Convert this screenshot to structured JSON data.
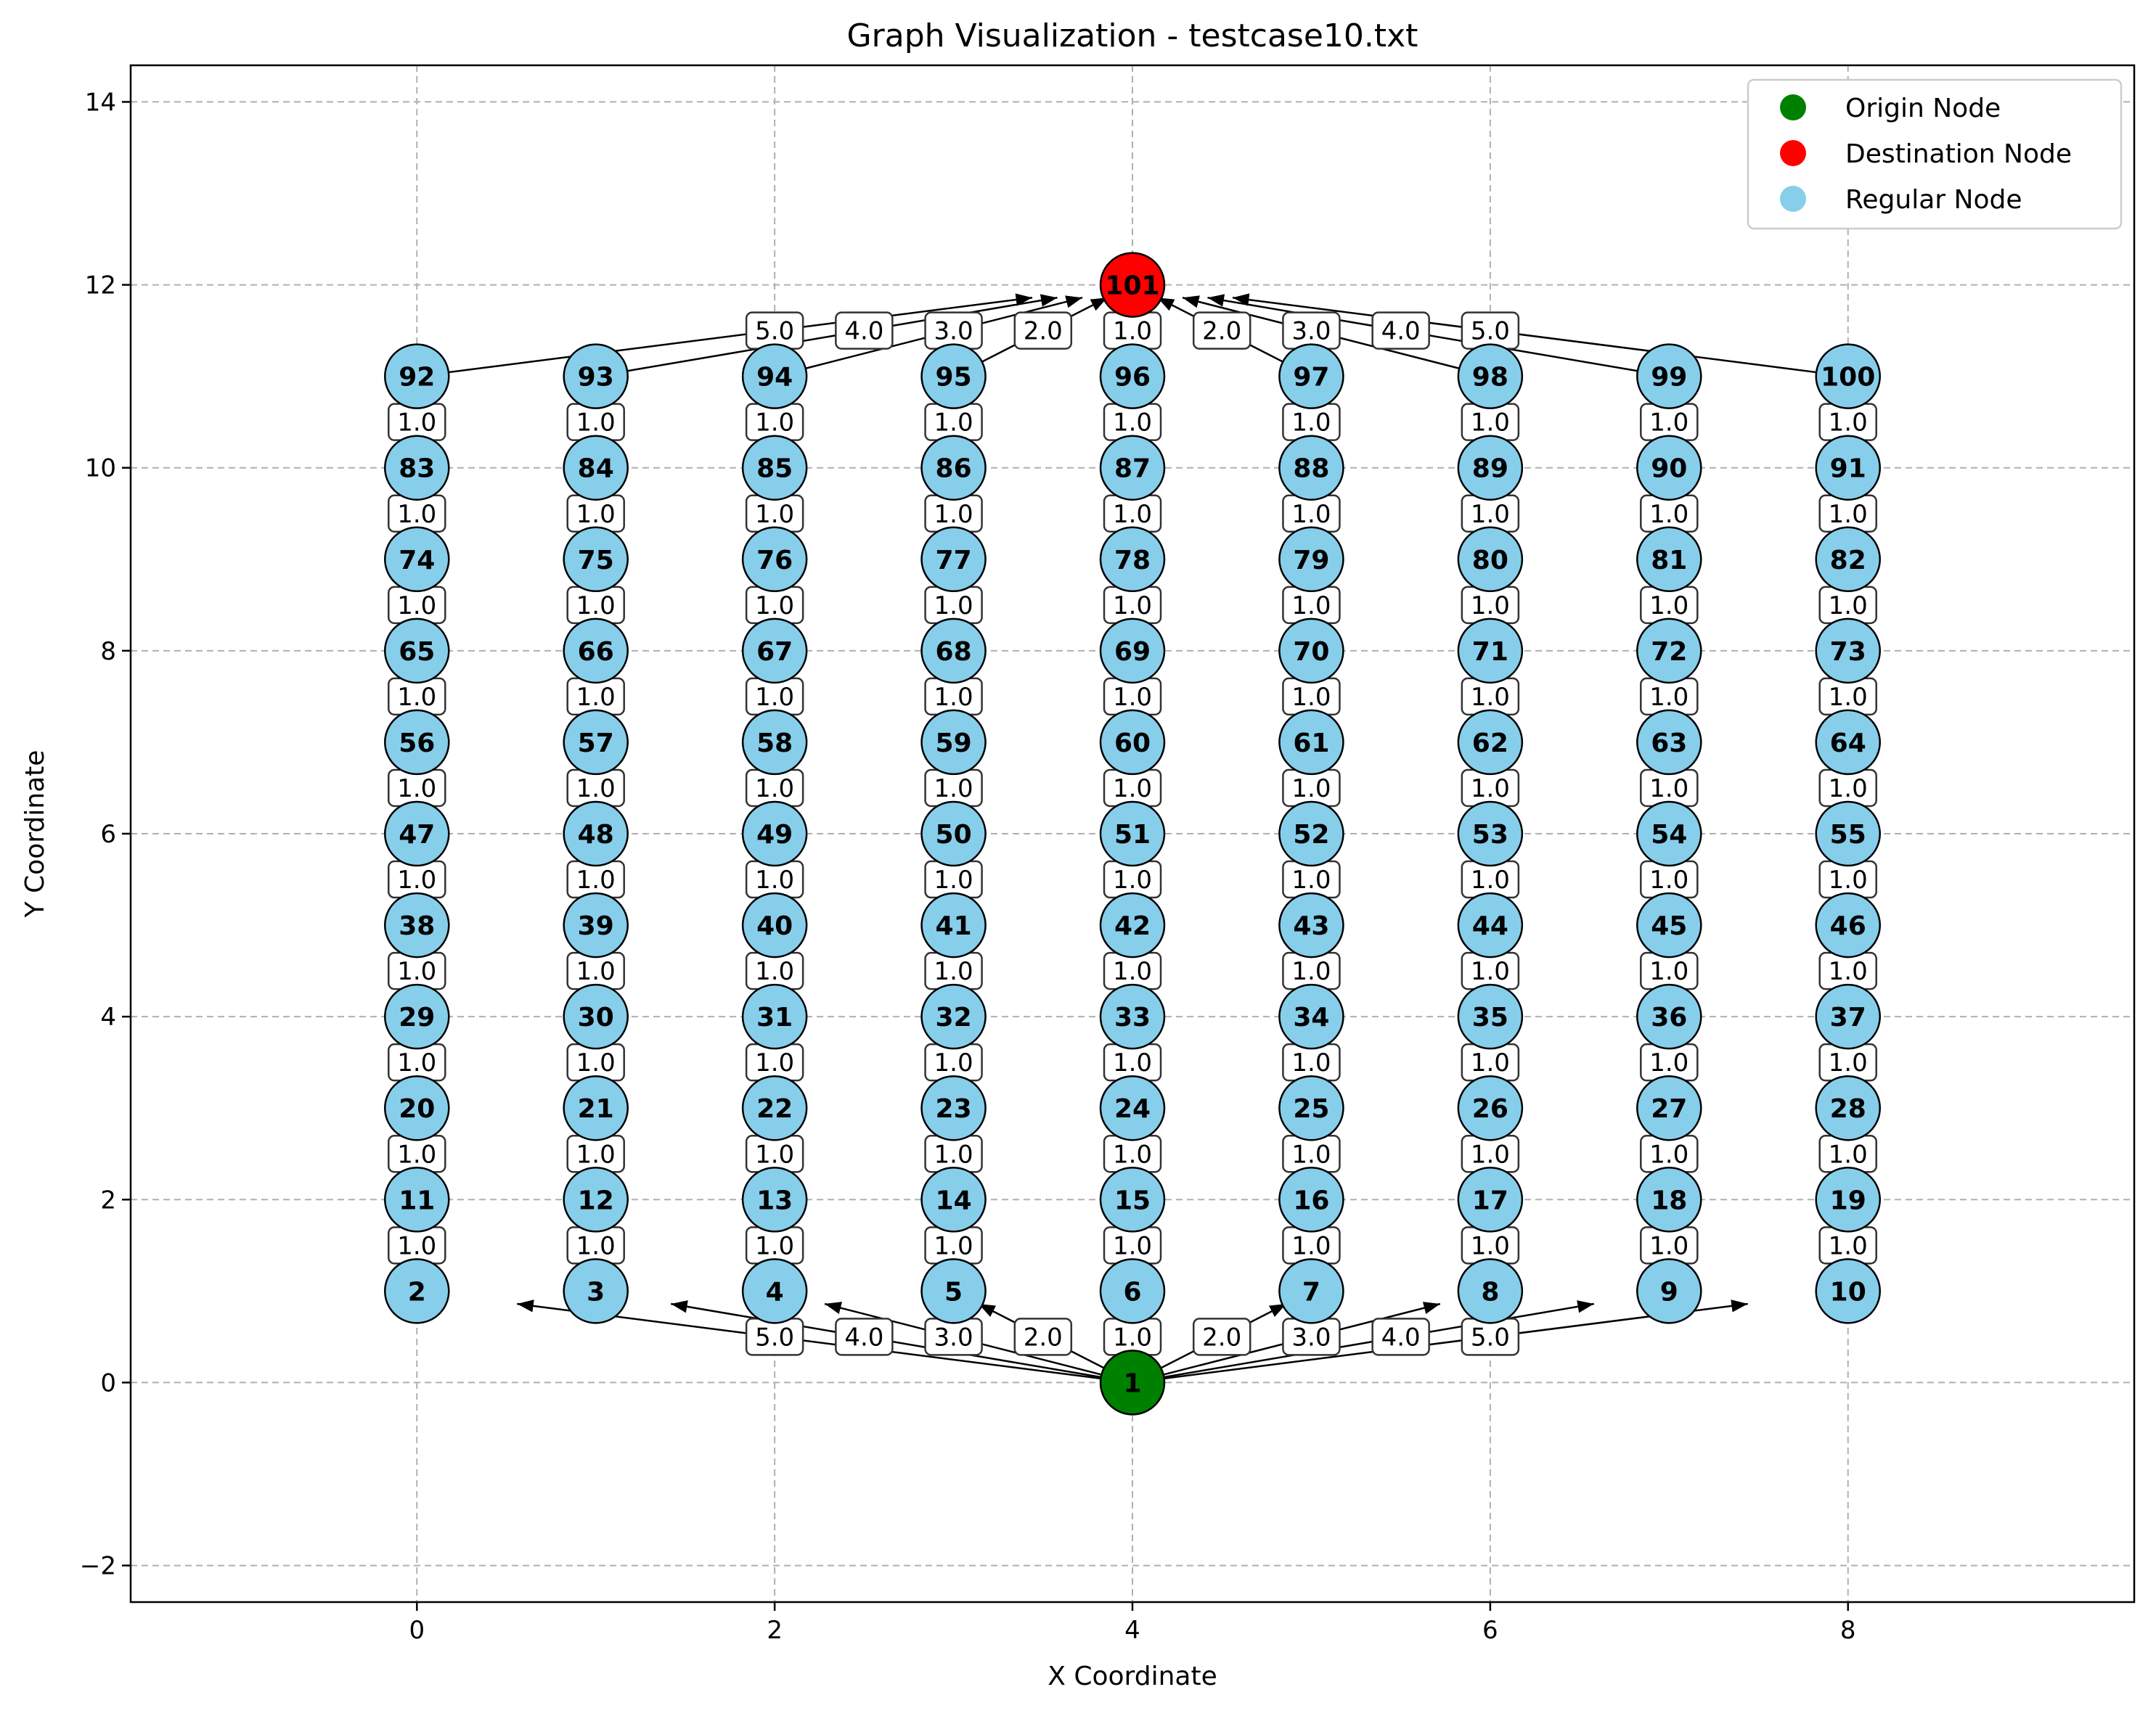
{
  "chart_data": {
    "type": "scatter",
    "title": "Graph Visualization - testcase10.txt",
    "xlabel": "X Coordinate",
    "ylabel": "Y Coordinate",
    "xlim": [
      -1.6,
      9.6
    ],
    "ylim": [
      -2.4,
      14.4
    ],
    "xticks": [
      0,
      2,
      4,
      6,
      8
    ],
    "yticks": [
      -2,
      0,
      2,
      4,
      6,
      8,
      10,
      12,
      14
    ],
    "grid": true,
    "legend_placement": "top-right",
    "legend": [
      {
        "name": "Origin Node",
        "color": "#008000"
      },
      {
        "name": "Destination Node",
        "color": "#ff0000"
      },
      {
        "name": "Regular Node",
        "color": "#87ceeb"
      }
    ],
    "colors": {
      "origin": "#008000",
      "destination": "#ff0000",
      "regular": "#87ceeb"
    },
    "origin": {
      "id": 1,
      "x": 4,
      "y": 0
    },
    "destination": {
      "id": 101,
      "x": 4,
      "y": 12
    },
    "grid_nodes": {
      "first_id": 2,
      "columns_x": [
        0,
        1,
        2,
        3,
        4,
        5,
        6,
        7,
        8
      ],
      "rows_y": [
        1,
        2,
        3,
        4,
        5,
        6,
        7,
        8,
        9,
        10,
        11
      ]
    },
    "vertical_edge_weight": "1.0",
    "origin_edges": [
      {
        "to": 2,
        "weight": "5.0"
      },
      {
        "to": 3,
        "weight": "4.0"
      },
      {
        "to": 4,
        "weight": "3.0"
      },
      {
        "to": 5,
        "weight": "2.0"
      },
      {
        "to": 6,
        "weight": "1.0"
      },
      {
        "to": 7,
        "weight": "2.0"
      },
      {
        "to": 8,
        "weight": "3.0"
      },
      {
        "to": 9,
        "weight": "4.0"
      },
      {
        "to": 10,
        "weight": "5.0"
      }
    ],
    "destination_edges": [
      {
        "from": 92,
        "weight": "5.0"
      },
      {
        "from": 93,
        "weight": "4.0"
      },
      {
        "from": 94,
        "weight": "3.0"
      },
      {
        "from": 95,
        "weight": "2.0"
      },
      {
        "from": 96,
        "weight": "1.0"
      },
      {
        "from": 97,
        "weight": "2.0"
      },
      {
        "from": 98,
        "weight": "3.0"
      },
      {
        "from": 99,
        "weight": "4.0"
      },
      {
        "from": 100,
        "weight": "5.0"
      }
    ]
  }
}
